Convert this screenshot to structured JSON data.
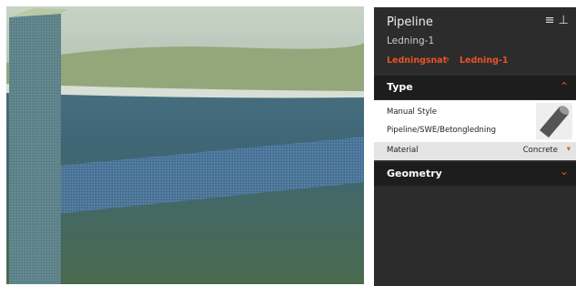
{
  "panel": {
    "title": "Pipeline",
    "subtitle": "Ledning-1",
    "breadcrumb": [
      "Ledningsnat",
      "Ledning-1"
    ],
    "sections": [
      {
        "title": "Type",
        "style_label": "Manual Style",
        "style_path": "Pipeline/SWE/Betongledning",
        "property": {
          "name": "Material",
          "value": "Concrete"
        }
      },
      {
        "title": "Geometry"
      }
    ]
  }
}
